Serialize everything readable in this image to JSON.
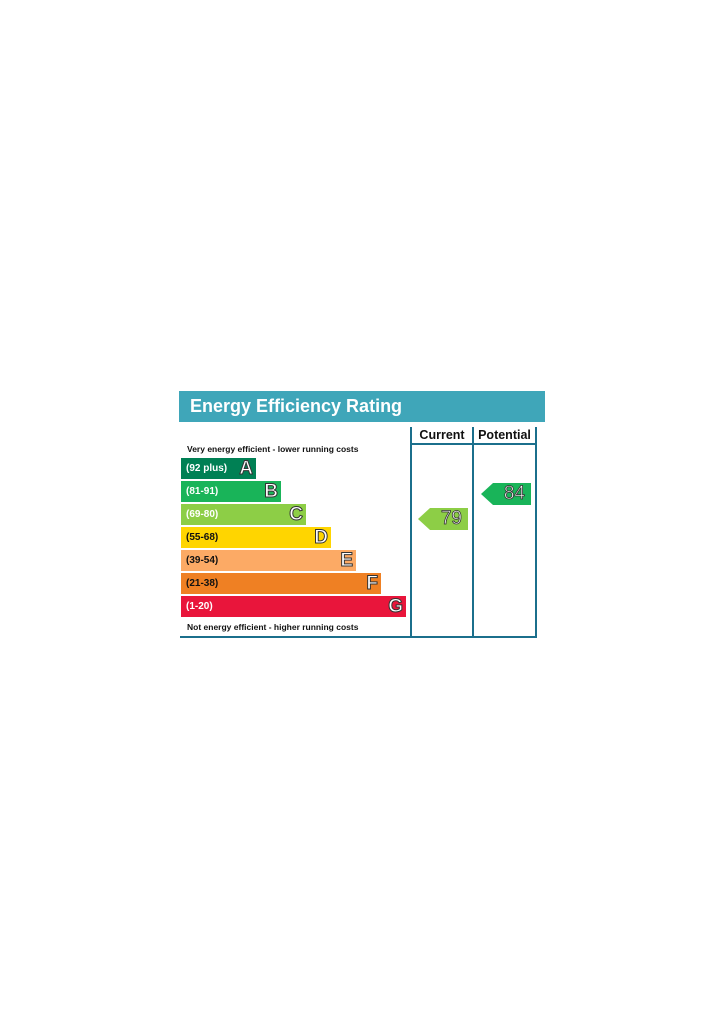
{
  "title": "Energy Efficiency Rating",
  "columns": {
    "current": "Current",
    "potential": "Potential"
  },
  "top_note": "Very energy efficient - lower running costs",
  "bottom_note": "Not energy efficient - higher running costs",
  "chart_data": {
    "type": "bar",
    "title": "Energy Efficiency Rating",
    "categories": [
      "A",
      "B",
      "C",
      "D",
      "E",
      "F",
      "G"
    ],
    "bands": [
      {
        "letter": "A",
        "range": "(92 plus)",
        "color": "#008054",
        "text_color": "#ffffff"
      },
      {
        "letter": "B",
        "range": "(81-91)",
        "color": "#19b459",
        "text_color": "#ffffff"
      },
      {
        "letter": "C",
        "range": "(69-80)",
        "color": "#8dce46",
        "text_color": "#ffffff"
      },
      {
        "letter": "D",
        "range": "(55-68)",
        "color": "#ffd500",
        "text_color": "#111111"
      },
      {
        "letter": "E",
        "range": "(39-54)",
        "color": "#fcaa65",
        "text_color": "#111111"
      },
      {
        "letter": "F",
        "range": "(21-38)",
        "color": "#ef8023",
        "text_color": "#111111"
      },
      {
        "letter": "G",
        "range": "(1-20)",
        "color": "#e9153b",
        "text_color": "#ffffff"
      }
    ],
    "current": {
      "value": 79,
      "band": "C",
      "color": "#8dce46"
    },
    "potential": {
      "value": 84,
      "band": "B",
      "color": "#19b459"
    }
  }
}
